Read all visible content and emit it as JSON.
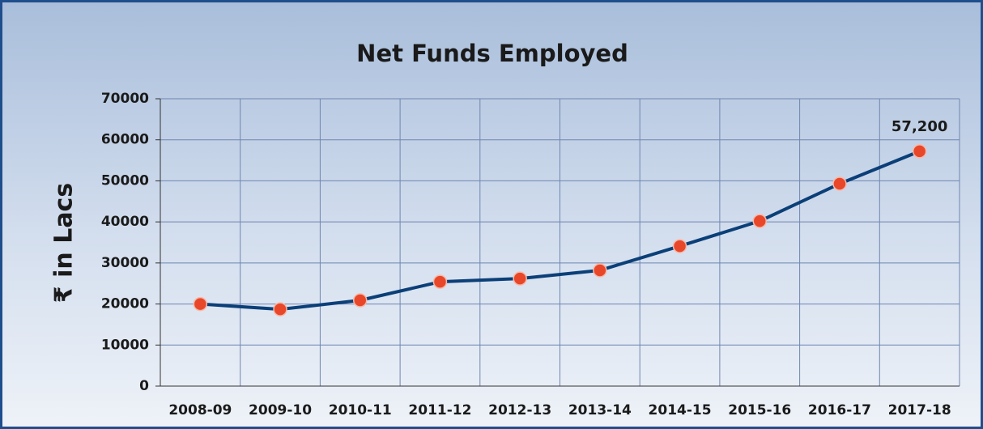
{
  "chart_data": {
    "type": "line",
    "title": "Net Funds Employed",
    "y_label": "₹ in Lacs",
    "categories": [
      "2008-09",
      "2009-10",
      "2010-11",
      "2011-12",
      "2012-13",
      "2013-14",
      "2014-15",
      "2015-16",
      "2016-17",
      "2017-18"
    ],
    "series": [
      {
        "name": "Net Funds Employed",
        "color": "#0b3f78",
        "marker_color": "#e8472a",
        "values": [
          20000,
          18700,
          20900,
          25400,
          26200,
          28200,
          34100,
          40200,
          49300,
          57200
        ],
        "value_labels": [
          null,
          null,
          null,
          null,
          null,
          null,
          null,
          null,
          null,
          "57,200"
        ]
      }
    ],
    "ylim": [
      0,
      70000
    ],
    "yticks": [
      0,
      10000,
      20000,
      30000,
      40000,
      50000,
      60000,
      70000
    ],
    "grid": true
  }
}
